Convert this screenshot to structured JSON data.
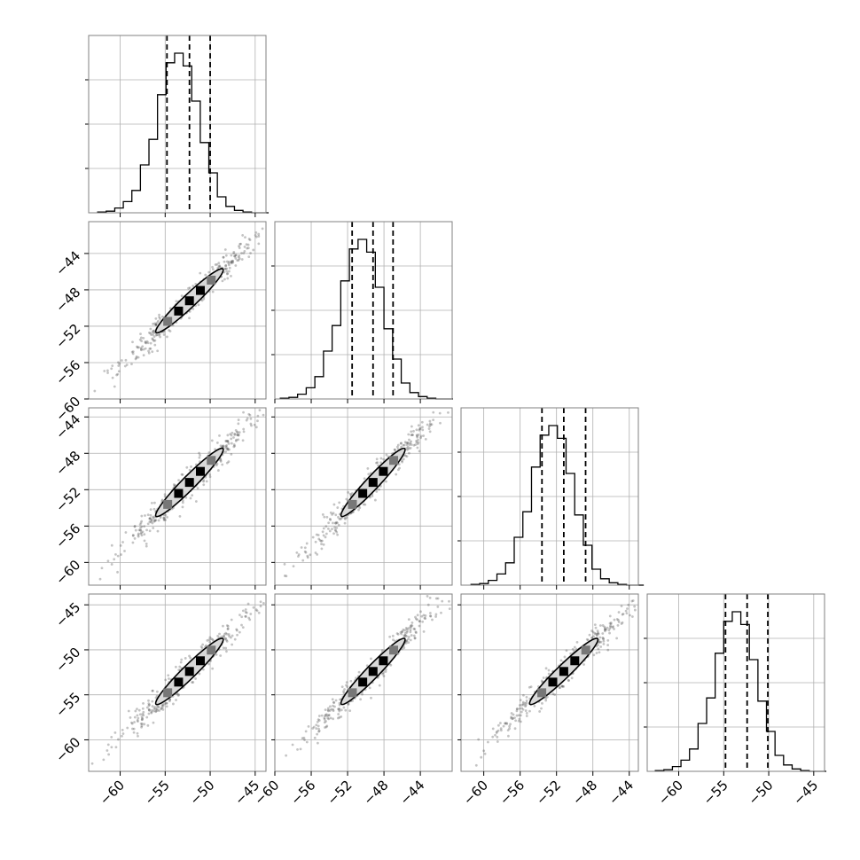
{
  "chart_data": {
    "type": "corner",
    "grid": true,
    "colors": {
      "line": "#000000",
      "grid": "#b0b0b0",
      "fill": "#d9d9d9",
      "scatter": "#555555"
    },
    "parameters": [
      {
        "index": 0,
        "median": -52.3,
        "q16": -54.8,
        "q84": -50.0,
        "range": [
          -63.5,
          -43.8
        ],
        "ticks": [
          -60,
          -55,
          -50,
          -45
        ],
        "tick_labels": [
          "−60",
          "−55",
          "−50",
          "−45"
        ]
      },
      {
        "index": 1,
        "median": -49.2,
        "q16": -51.5,
        "q84": -47.0,
        "range": [
          -60.0,
          -40.5
        ],
        "ticks": [
          -60,
          -56,
          -52,
          -48,
          -44
        ],
        "tick_labels": [
          "−60",
          "−56",
          "−52",
          "−48",
          "−44"
        ]
      },
      {
        "index": 2,
        "median": -51.2,
        "q16": -53.6,
        "q84": -48.8,
        "range": [
          -62.5,
          -43.0
        ],
        "ticks": [
          -60,
          -56,
          -52,
          -48,
          -44
        ],
        "tick_labels": [
          "−60",
          "−56",
          "−52",
          "−48",
          "−44"
        ]
      },
      {
        "index": 3,
        "median": -52.4,
        "q16": -54.8,
        "q84": -50.1,
        "range": [
          -63.5,
          -43.8
        ],
        "ticks": [
          -60,
          -55,
          -50,
          -45
        ],
        "tick_labels": [
          "−60",
          "−55",
          "−50",
          "−45"
        ]
      }
    ],
    "histogram": {
      "bins": 20,
      "relative_counts": [
        0.005,
        0.01,
        0.03,
        0.07,
        0.14,
        0.3,
        0.46,
        0.74,
        0.94,
        1.0,
        0.92,
        0.7,
        0.44,
        0.25,
        0.1,
        0.04,
        0.015,
        0.005,
        0.0,
        0.0
      ]
    },
    "panel_correlation": 0.98
  }
}
